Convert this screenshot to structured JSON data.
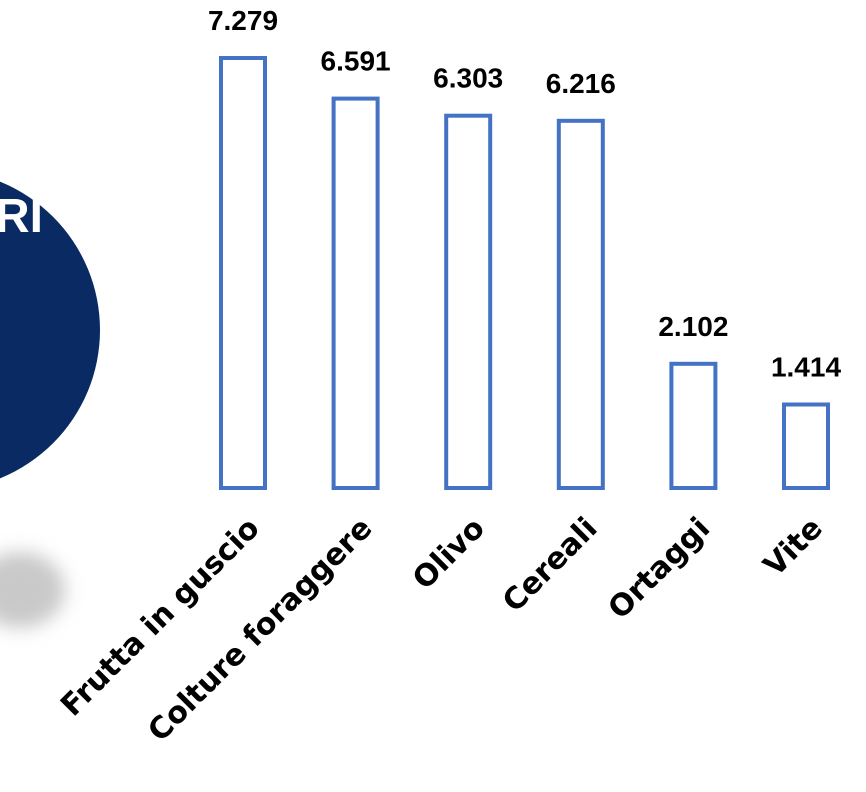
{
  "decor": {
    "circle_text": "RI",
    "circle_color": "#0a2a63",
    "shadow_color": "#c9c9c9"
  },
  "chart_data": {
    "type": "bar",
    "categories": [
      "Frutta in guscio",
      "Colture foraggere",
      "Olivo",
      "Cereali",
      "Ortaggi",
      "Vite"
    ],
    "values": [
      7.279,
      6.591,
      6.303,
      6.216,
      2.102,
      1.414
    ],
    "value_labels": [
      "7.279",
      "6.591",
      "6.303",
      "6.216",
      "2.102",
      "1.414"
    ],
    "title": "",
    "xlabel": "",
    "ylabel": "",
    "ylim": [
      0,
      7.279
    ],
    "grid": false,
    "legend": "none",
    "bar_style": "outline",
    "bar_color": "#4472c4"
  }
}
